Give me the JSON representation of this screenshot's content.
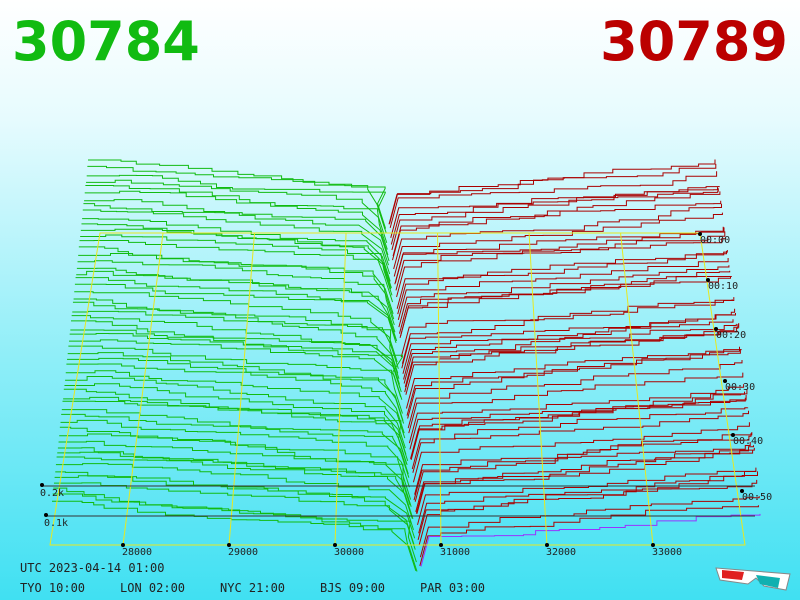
{
  "header": {
    "bid": "30784",
    "ask": "30789"
  },
  "price_axis": [
    "28000",
    "29000",
    "30000",
    "31000",
    "32000",
    "33000"
  ],
  "time_axis": [
    "00:00",
    "00:10",
    "00:20",
    "00:30",
    "00:40",
    "00:50"
  ],
  "volume_axis": [
    "0.2k",
    "0.1k"
  ],
  "footer": {
    "utc": "UTC 2023-04-14 01:00",
    "clocks": [
      "TYO 10:00",
      "LON 02:00",
      "NYC 21:00",
      "BJS 09:00",
      "PAR 03:00"
    ]
  }
}
